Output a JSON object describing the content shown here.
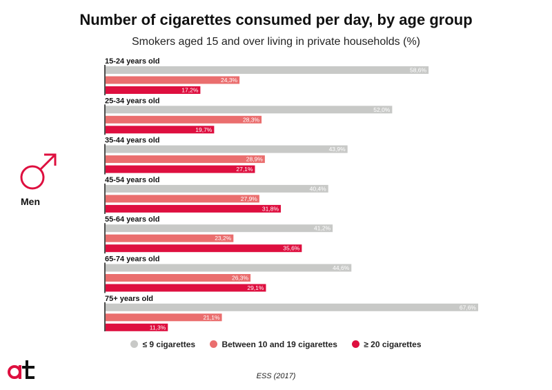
{
  "title": "Number of cigarettes consumed per day, by age group",
  "subtitle": "Smokers aged 15 and over living in private households (%)",
  "group_label": "Men",
  "group_icon": "male-symbol-icon",
  "logo_icon": "at-logo-icon",
  "source": "ESS (2017)",
  "colors": {
    "light": "#c8c9c7",
    "medium": "#ea6e6e",
    "heavy": "#de0f3f",
    "text": "#111111"
  },
  "legend": [
    {
      "label": "≤ 9 cigarettes",
      "color": "#c8c9c7"
    },
    {
      "label": "Between 10 and 19 cigarettes",
      "color": "#ea6e6e"
    },
    {
      "label": "≥ 20 cigarettes",
      "color": "#de0f3f"
    }
  ],
  "chart_data": {
    "type": "bar",
    "orientation": "horizontal",
    "categories": [
      "15-24 years old",
      "25-34 years old",
      "35-44 years old",
      "45-54 years old",
      "55-64 years old",
      "65-74 years old",
      "75+ years old"
    ],
    "series": [
      {
        "name": "≤ 9 cigarettes",
        "values": [
          58.6,
          52.0,
          43.9,
          40.4,
          41.2,
          44.6,
          67.6
        ],
        "labels": [
          "58,6%",
          "52,0%",
          "43,9%",
          "40,4%",
          "41,2%",
          "44,6%",
          "67,6%"
        ]
      },
      {
        "name": "Between 10 and 19 cigarettes",
        "values": [
          24.3,
          28.3,
          28.9,
          27.9,
          23.2,
          26.3,
          21.1
        ],
        "labels": [
          "24,3%",
          "28,3%",
          "28,9%",
          "27,9%",
          "23,2%",
          "26,3%",
          "21,1%"
        ]
      },
      {
        "name": "≥ 20 cigarettes",
        "values": [
          17.2,
          19.7,
          27.1,
          31.8,
          35.6,
          29.1,
          11.3
        ],
        "labels": [
          "17,2%",
          "19,7%",
          "27,1%",
          "31,8%",
          "35,6%",
          "29,1%",
          "11,3%"
        ]
      }
    ],
    "xlim": [
      0,
      67.6
    ],
    "grid": false,
    "legend_position": "bottom"
  }
}
